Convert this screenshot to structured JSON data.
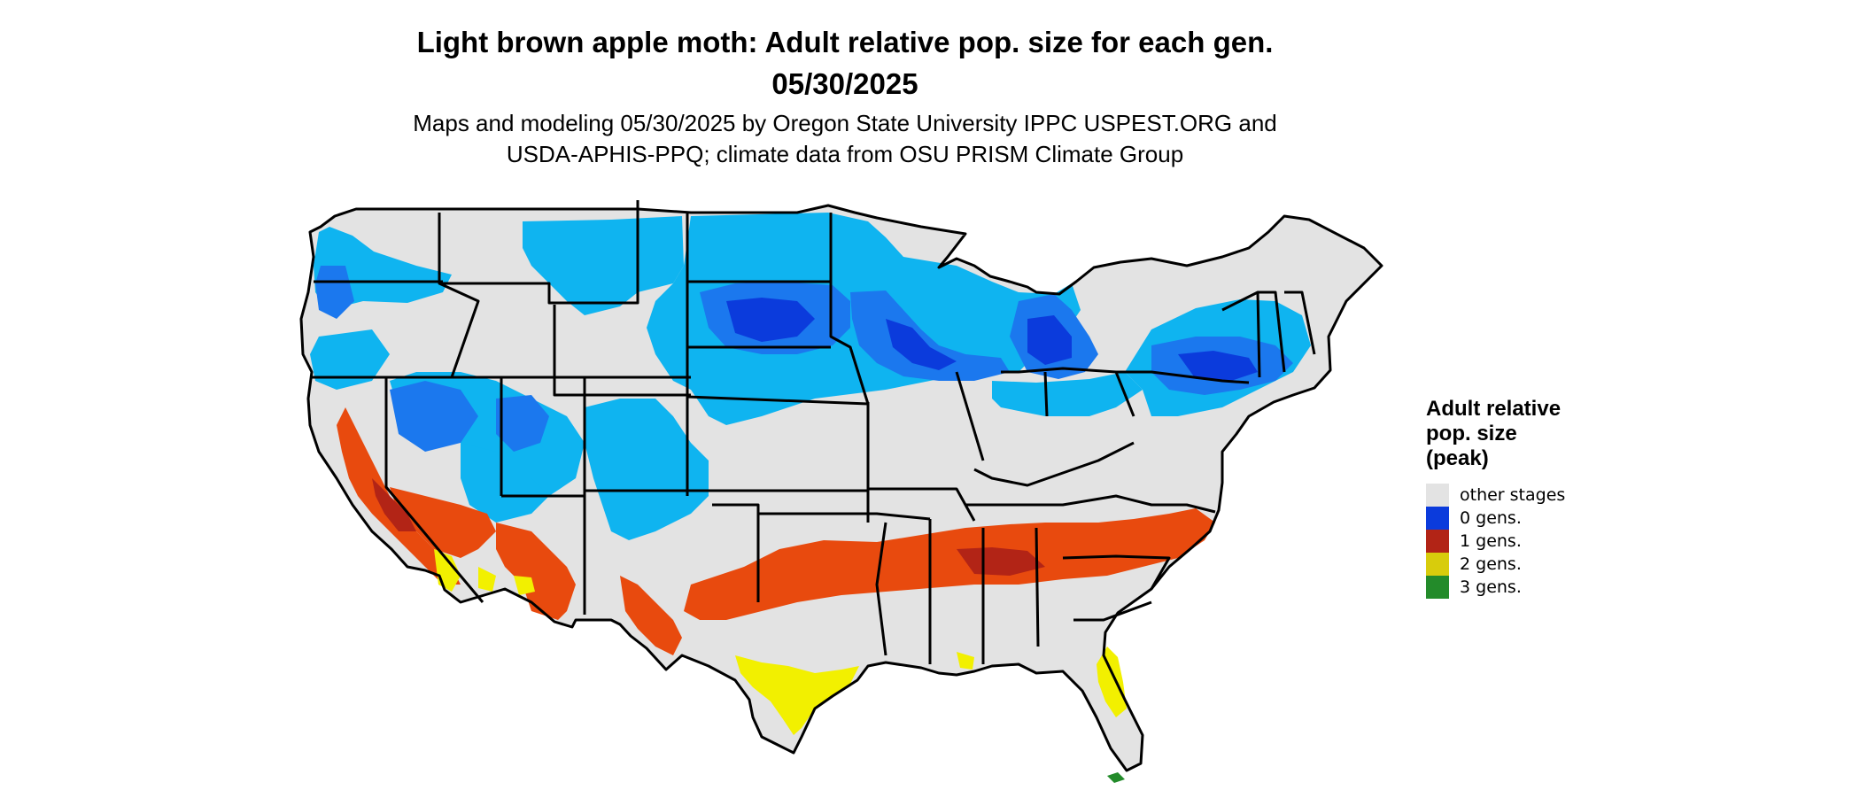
{
  "title_line1": "Light brown apple moth: Adult relative pop. size for each gen.",
  "title_line2": "05/30/2025",
  "subtitle_line1": "Maps and modeling 05/30/2025 by Oregon State University IPPC USPEST.ORG and",
  "subtitle_line2": "USDA-APHIS-PPQ; climate data from OSU PRISM Climate Group",
  "legend": {
    "title_line1": "Adult relative",
    "title_line2": "pop. size",
    "title_line3": "(peak)",
    "items": [
      {
        "label": "other stages",
        "color": "#e3e3e3"
      },
      {
        "label": "0 gens.",
        "color": "#0b3bdc"
      },
      {
        "label": "1 gens.",
        "color": "#b22416"
      },
      {
        "label": "2 gens.",
        "color": "#d8cc0c"
      },
      {
        "label": "3 gens.",
        "color": "#238b2a"
      }
    ]
  },
  "map_colors": {
    "land": "#e3e3e3",
    "border": "#000000",
    "zero_gen_light": "#0fb4f0",
    "zero_gen_mid": "#1b78ee",
    "zero_gen_dark": "#0b3bdc",
    "one_gen": "#e84a0e",
    "one_gen_dark": "#b22416",
    "two_gen": "#f2f000",
    "three_gen": "#238b2a"
  }
}
